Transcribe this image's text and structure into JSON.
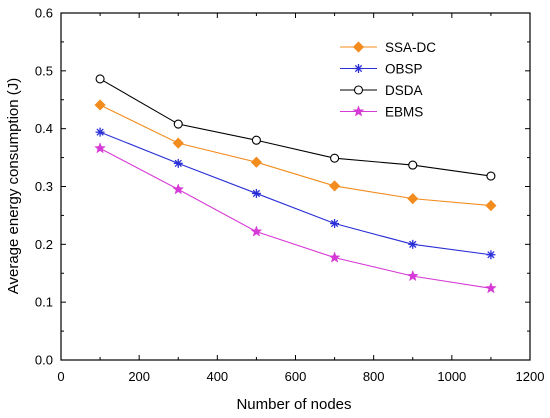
{
  "chart_data": {
    "type": "line",
    "title": "",
    "xlabel": "Number of nodes",
    "ylabel": "Average energy consumption (J)",
    "xlim": [
      0,
      1200
    ],
    "ylim": [
      0.0,
      0.6
    ],
    "xticks": [
      0,
      200,
      400,
      600,
      800,
      1000,
      1200
    ],
    "yticks": [
      0.0,
      0.1,
      0.2,
      0.3,
      0.4,
      0.5,
      0.6
    ],
    "xtick_labels": [
      "0",
      "200",
      "400",
      "600",
      "800",
      "1000",
      "1200"
    ],
    "ytick_labels": [
      "0.0",
      "0.1",
      "0.2",
      "0.3",
      "0.4",
      "0.5",
      "0.6"
    ],
    "x": [
      100,
      300,
      500,
      700,
      900,
      1100
    ],
    "grid": false,
    "legend_position": "top-right",
    "series": [
      {
        "name": "SSA-DC",
        "values": [
          0.441,
          0.375,
          0.342,
          0.301,
          0.279,
          0.267
        ],
        "color": "#f28c1e",
        "marker": "diamond"
      },
      {
        "name": "OBSP",
        "values": [
          0.394,
          0.34,
          0.288,
          0.236,
          0.2,
          0.182
        ],
        "color": "#2a2fd6",
        "marker": "asterisk"
      },
      {
        "name": "DSDA",
        "values": [
          0.486,
          0.408,
          0.38,
          0.349,
          0.337,
          0.318
        ],
        "color": "#000000",
        "marker": "circle"
      },
      {
        "name": "EBMS",
        "values": [
          0.366,
          0.295,
          0.222,
          0.177,
          0.145,
          0.124
        ],
        "color": "#d63ad6",
        "marker": "star"
      }
    ]
  }
}
